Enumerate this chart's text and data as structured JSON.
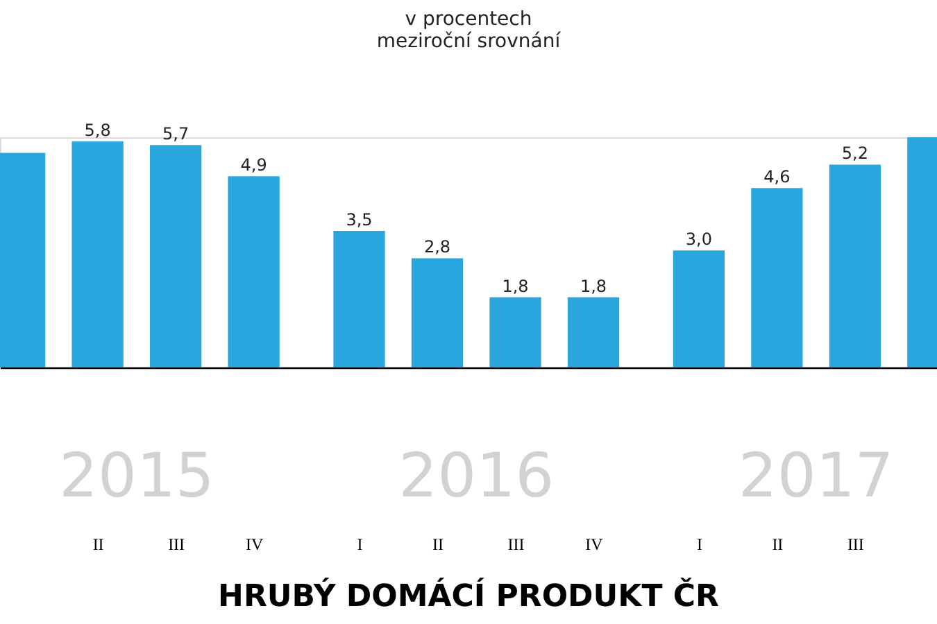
{
  "chart_data": {
    "type": "bar",
    "title": "HRUBÝ DOMÁCÍ PRODUKT ČR",
    "subtitle": "v procentech\nmeziroční srovnání",
    "categories": [
      null,
      "II",
      "III",
      "IV",
      "I",
      "II",
      "III",
      "IV",
      "I",
      "II",
      "III",
      null
    ],
    "values": [
      5.5,
      5.8,
      5.7,
      4.9,
      3.5,
      2.8,
      1.8,
      1.8,
      3.0,
      4.6,
      5.2,
      5.9
    ],
    "value_labels": [
      null,
      "5,8",
      "5,7",
      "4,9",
      "3,5",
      "2,8",
      "1,8",
      "1,8",
      "3,0",
      "4,6",
      "5,2",
      null
    ],
    "color": "#29a6dd",
    "annotations": [
      "2015",
      "2016",
      "2017"
    ],
    "grid": false
  }
}
